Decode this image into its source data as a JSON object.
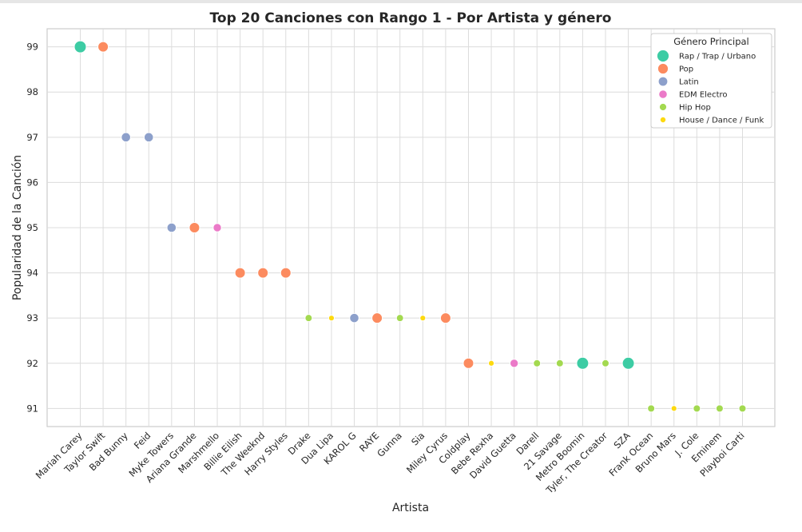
{
  "chart_data": {
    "type": "scatter",
    "title": "Top 20 Canciones con Rango 1 - Por Artista y género",
    "xlabel": "Artista",
    "ylabel": "Popularidad de la Canción",
    "ylim": [
      90.6,
      99.4
    ],
    "yticks": [
      91,
      92,
      93,
      94,
      95,
      96,
      97,
      98,
      99
    ],
    "grid": true,
    "legend": {
      "title": "Género Principal",
      "placement": "top-right",
      "entries": [
        {
          "name": "Rap / Trap / Urbano",
          "color": "#3dcca4",
          "size": 7.5
        },
        {
          "name": "Pop",
          "color": "#fc8b5f",
          "size": 6.5
        },
        {
          "name": "Latin",
          "color": "#8da0cb",
          "size": 5.8
        },
        {
          "name": "EDM Electro",
          "color": "#eb7ac8",
          "size": 5.2
        },
        {
          "name": "Hip Hop",
          "color": "#a3d950",
          "size": 4.5
        },
        {
          "name": "House / Dance / Funk",
          "color": "#fdd90f",
          "size": 3.6
        }
      ]
    },
    "categories": [
      "Mariah Carey",
      "Taylor Swift",
      "Bad Bunny",
      "Feid",
      "Myke Towers",
      "Ariana Grande",
      "Marshmello",
      "Billie Eilish",
      "The Weeknd",
      "Harry Styles",
      "Drake",
      "Dua Lipa",
      "KAROL G",
      "RAYE",
      "Gunna",
      "Sia",
      "Miley Cyrus",
      "Coldplay",
      "Bebe Rexha",
      "David Guetta",
      "Darell",
      "21 Savage",
      "Metro Boomin",
      "Tyler, The Creator",
      "SZA",
      "Frank Ocean",
      "Bruno Mars",
      "J. Cole",
      "Eminem",
      "Playboi Carti"
    ],
    "points": [
      {
        "x": "Mariah Carey",
        "y": 99,
        "genre": "Rap / Trap / Urbano"
      },
      {
        "x": "Taylor Swift",
        "y": 99,
        "genre": "Pop"
      },
      {
        "x": "Bad Bunny",
        "y": 97,
        "genre": "Latin"
      },
      {
        "x": "Feid",
        "y": 97,
        "genre": "Latin"
      },
      {
        "x": "Myke Towers",
        "y": 95,
        "genre": "Latin"
      },
      {
        "x": "Ariana Grande",
        "y": 95,
        "genre": "Pop"
      },
      {
        "x": "Marshmello",
        "y": 95,
        "genre": "EDM Electro"
      },
      {
        "x": "Billie Eilish",
        "y": 94,
        "genre": "Pop"
      },
      {
        "x": "The Weeknd",
        "y": 94,
        "genre": "Pop"
      },
      {
        "x": "Harry Styles",
        "y": 94,
        "genre": "Pop"
      },
      {
        "x": "Drake",
        "y": 93,
        "genre": "Hip Hop"
      },
      {
        "x": "Dua Lipa",
        "y": 93,
        "genre": "House / Dance / Funk"
      },
      {
        "x": "KAROL G",
        "y": 93,
        "genre": "Latin"
      },
      {
        "x": "RAYE",
        "y": 93,
        "genre": "Pop"
      },
      {
        "x": "Gunna",
        "y": 93,
        "genre": "Hip Hop"
      },
      {
        "x": "Sia",
        "y": 93,
        "genre": "House / Dance / Funk"
      },
      {
        "x": "Miley Cyrus",
        "y": 93,
        "genre": "Pop"
      },
      {
        "x": "Coldplay",
        "y": 92,
        "genre": "Pop"
      },
      {
        "x": "Bebe Rexha",
        "y": 92,
        "genre": "House / Dance / Funk"
      },
      {
        "x": "David Guetta",
        "y": 92,
        "genre": "EDM Electro"
      },
      {
        "x": "Darell",
        "y": 92,
        "genre": "Hip Hop"
      },
      {
        "x": "21 Savage",
        "y": 92,
        "genre": "Hip Hop"
      },
      {
        "x": "Metro Boomin",
        "y": 92,
        "genre": "Rap / Trap / Urbano"
      },
      {
        "x": "Tyler, The Creator",
        "y": 92,
        "genre": "Hip Hop"
      },
      {
        "x": "SZA",
        "y": 92,
        "genre": "Rap / Trap / Urbano"
      },
      {
        "x": "Frank Ocean",
        "y": 91,
        "genre": "Hip Hop"
      },
      {
        "x": "Bruno Mars",
        "y": 91,
        "genre": "House / Dance / Funk"
      },
      {
        "x": "J. Cole",
        "y": 91,
        "genre": "Hip Hop"
      },
      {
        "x": "Eminem",
        "y": 91,
        "genre": "Hip Hop"
      },
      {
        "x": "Playboi Carti",
        "y": 91,
        "genre": "Hip Hop"
      }
    ]
  }
}
